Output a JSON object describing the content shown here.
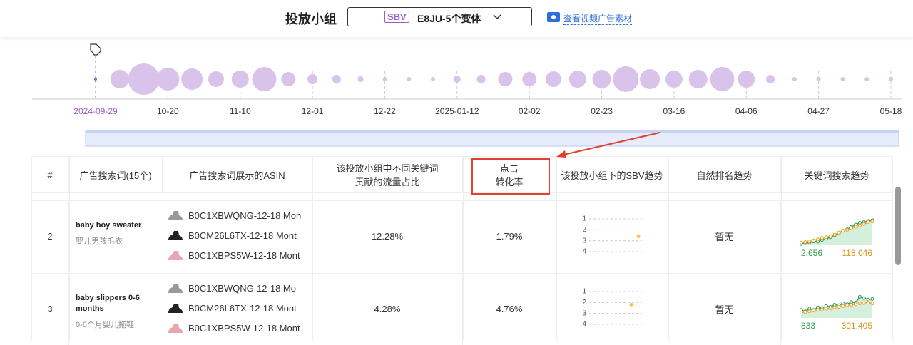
{
  "header": {
    "title": "投放小组",
    "badge": "SBV",
    "group": "E8JU-5个变体",
    "link": "查看视频广告素材"
  },
  "timeline": {
    "categories": [
      "2024-09-29",
      null,
      null,
      "10-20",
      null,
      null,
      "11-10",
      null,
      null,
      "12-01",
      null,
      null,
      "12-22",
      null,
      null,
      "2025-01-12",
      null,
      null,
      "02-02",
      null,
      null,
      "02-23",
      null,
      null,
      "03-16",
      null,
      null,
      "04-06",
      null,
      null,
      "04-27",
      null,
      null,
      "05-18"
    ],
    "sizes": [
      2,
      13,
      22,
      16,
      15,
      11,
      12,
      17,
      10,
      7,
      6,
      4,
      3,
      3,
      3,
      5,
      6,
      10,
      10,
      11,
      12,
      13,
      18,
      14,
      12,
      13,
      17,
      12,
      6,
      3,
      3,
      3,
      3,
      3
    ]
  },
  "table": {
    "columns": [
      "#",
      "广告搜索词(15个)",
      "广告搜索词展示的ASIN",
      "该投放小组中不同关键词\n贡献的流量占比",
      "点击\n转化率",
      "该投放小组下的SBV趋势",
      "自然排名趋势",
      "关键词搜索趋势"
    ],
    "rows": [
      {
        "index": "2",
        "keyword": "baby boy sweater",
        "keyword_cn": "婴儿男孩毛衣",
        "asins": [
          "B0C1XBWQNG-12-18 Mon",
          "B0CM26L6TX-12-18 Mont",
          "B0C1XBPS5W-12-18 Mont"
        ],
        "traffic_share": "12.28%",
        "cvr": "1.79%",
        "sbv_trend": {
          "ylim": [
            1,
            4
          ],
          "yticks": [
            1,
            2,
            3,
            4
          ],
          "value": 2.6
        },
        "organic": "暂无",
        "search_trend": {
          "green_label": "2,656",
          "orange_label": "118,046",
          "green": [
            5,
            8,
            10,
            15,
            14,
            20,
            25,
            30,
            38,
            45,
            55,
            60,
            70,
            78,
            85,
            88,
            92,
            95
          ],
          "orange": [
            10,
            12,
            15,
            18,
            22,
            28,
            30,
            35,
            40,
            48,
            55,
            58,
            65,
            70,
            75,
            80,
            88,
            90
          ]
        }
      },
      {
        "index": "3",
        "keyword": "baby slippers 0-6 months",
        "keyword_cn": "0-6个月婴儿拖鞋",
        "asins": [
          "B0C1XBWQNG-12-18 Mo",
          "B0CM26L6TX-12-18 Mont",
          "B0C1XBPS5W-12-18 Mont"
        ],
        "traffic_share": "4.28%",
        "cvr": "4.76%",
        "sbv_trend": {
          "ylim": [
            1,
            4
          ],
          "yticks": [
            1,
            2,
            3,
            4
          ],
          "value": 2.2
        },
        "organic": "暂无",
        "search_trend": {
          "green_label": "833",
          "orange_label": "391,405",
          "green": [
            30,
            25,
            35,
            30,
            40,
            38,
            45,
            42,
            50,
            48,
            55,
            52,
            60,
            58,
            80,
            75,
            70,
            72
          ],
          "orange": [
            20,
            22,
            25,
            28,
            30,
            32,
            35,
            36,
            40,
            42,
            45,
            48,
            50,
            52,
            55,
            56,
            58,
            55
          ]
        }
      }
    ]
  }
}
